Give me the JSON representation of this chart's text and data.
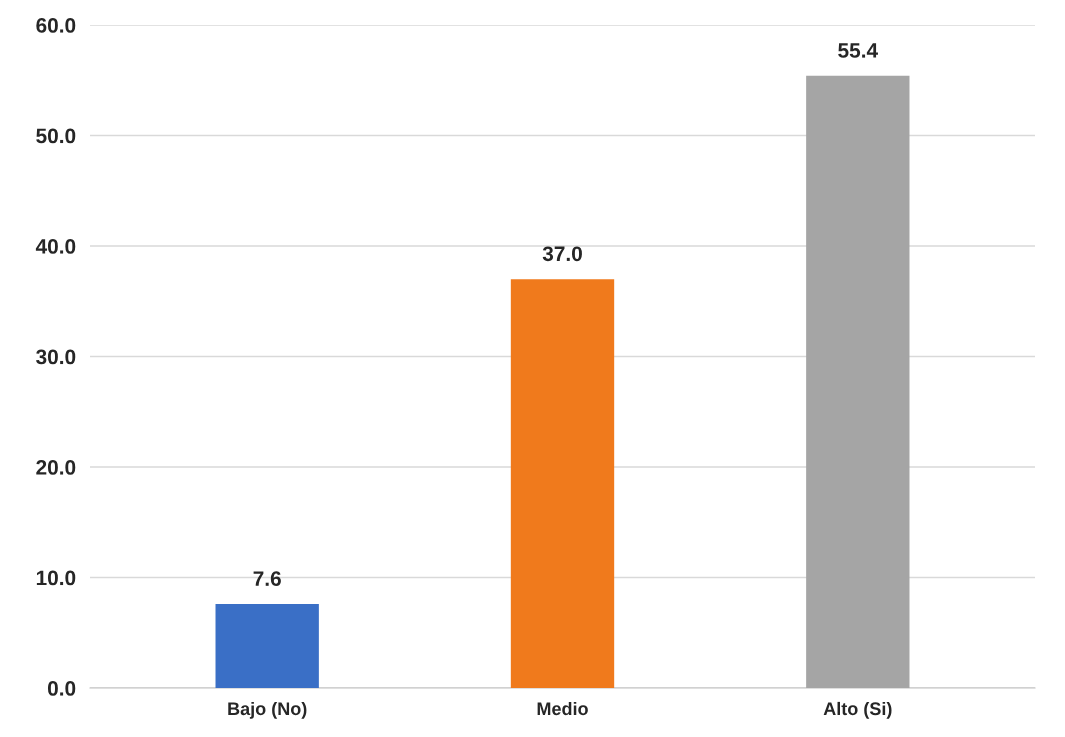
{
  "chart_data": {
    "type": "bar",
    "categories": [
      "Bajo (No)",
      "Medio",
      "Alto (Si)"
    ],
    "values": [
      7.6,
      37.0,
      55.4
    ],
    "colors": [
      "#3a6fc6",
      "#f07a1c",
      "#a5a5a5"
    ],
    "value_labels": [
      "7.6",
      "37.0",
      "55.4"
    ],
    "ylim": [
      0,
      60
    ],
    "yticks": [
      {
        "value": 0,
        "label": "0.0"
      },
      {
        "value": 10,
        "label": "10.0"
      },
      {
        "value": 20,
        "label": "20.0"
      },
      {
        "value": 30,
        "label": "30.0"
      },
      {
        "value": 40,
        "label": "40.0"
      },
      {
        "value": 50,
        "label": "50.0"
      },
      {
        "value": 60,
        "label": "60.0"
      }
    ],
    "grid": "y",
    "legend": false
  }
}
